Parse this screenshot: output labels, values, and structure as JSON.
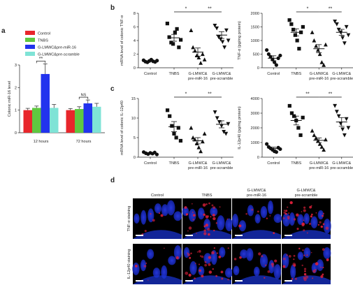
{
  "panels": {
    "a": "a",
    "b": "b",
    "c": "c",
    "d": "d"
  },
  "colors": {
    "control": "#e8262b",
    "tnbs": "#5fc840",
    "premir16": "#2233ee",
    "prescramble": "#7fe3d6",
    "micro_red": "#e0203a",
    "micro_blue": "#1a35d8"
  },
  "chart_data": [
    {
      "id": "a",
      "type": "bar",
      "categories": [
        "12 hours",
        "72 hours"
      ],
      "legend": [
        "Control",
        "TNBS",
        "G-LMWC&pre-miR-16",
        "G-LMWC&pre-scramble"
      ],
      "legend_position": "top",
      "series": [
        {
          "name": "Control",
          "values": [
            1.0,
            1.0
          ],
          "errors": [
            0.08,
            0.07
          ]
        },
        {
          "name": "TNBS",
          "values": [
            1.1,
            1.05
          ],
          "errors": [
            0.08,
            0.1
          ]
        },
        {
          "name": "G-LMWC&pre-miR-16",
          "values": [
            2.6,
            1.3
          ],
          "errors": [
            0.45,
            0.15
          ]
        },
        {
          "name": "G-LMWC&pre-scramble",
          "values": [
            1.1,
            1.15
          ],
          "errors": [
            0.15,
            0.15
          ]
        }
      ],
      "ylabel": "Colonic miR-16 level",
      "ylim": [
        0,
        3
      ],
      "yticks": [
        0,
        1,
        2,
        3
      ],
      "annotations": [
        {
          "text": "**",
          "category": 0,
          "from": 1,
          "to": 2
        },
        {
          "text": "NS",
          "category": 1,
          "from": 1,
          "to": 2
        }
      ]
    },
    {
      "id": "b-left",
      "type": "scatter",
      "categories": [
        "Control",
        "TNBS",
        "G-LMWC& pre-miR-16",
        "G-LMWC& pre-scramble"
      ],
      "ylabel": "mRNA level of colonic TNF-α",
      "ylim": [
        0,
        8
      ],
      "yticks": [
        0,
        2,
        4,
        6,
        8
      ],
      "groups": [
        {
          "points": [
            1.1,
            0.9,
            0.8,
            1.0,
            1.2,
            0.95,
            0.85,
            1.05
          ],
          "mean": 1.0,
          "sem": 0.1
        },
        {
          "points": [
            6.5,
            4.5,
            3.7,
            3.5,
            5.2,
            5.7,
            3.0,
            4.1
          ],
          "mean": 4.4,
          "sem": 0.5
        },
        {
          "points": [
            5.5,
            3.0,
            2.5,
            1.8,
            1.5,
            0.7,
            2.0,
            1.2
          ],
          "mean": 2.3,
          "sem": 0.6
        },
        {
          "points": [
            6.2,
            5.8,
            4.5,
            4.2,
            3.8,
            3.0,
            5.5,
            4.0
          ],
          "mean": 4.8,
          "sem": 0.5
        }
      ],
      "marker_shapes": [
        "circle",
        "square",
        "triangle-up",
        "triangle-down"
      ],
      "annotations": [
        {
          "text": "*",
          "from": 1,
          "to": 2
        },
        {
          "text": "**",
          "from": 2,
          "to": 3
        }
      ]
    },
    {
      "id": "b-right",
      "type": "scatter",
      "categories": [
        "Control",
        "TNBS",
        "G-LMWC& pre-miR-16",
        "G-LMWC& pre-scramble"
      ],
      "ylabel": "TNF-α (pg/mg protein)",
      "ylim": [
        0,
        2000
      ],
      "yticks": [
        0,
        500,
        1000,
        1500,
        2000
      ],
      "groups": [
        {
          "points": [
            650,
            500,
            400,
            300,
            200,
            100,
            350,
            450
          ],
          "mean": 350,
          "sem": 90
        },
        {
          "points": [
            1750,
            1600,
            1400,
            1200,
            1000,
            700,
            1300,
            1500
          ],
          "mean": 1300,
          "sem": 130
        },
        {
          "points": [
            1300,
            1000,
            800,
            650,
            500,
            200,
            100,
            850
          ],
          "mean": 700,
          "sem": 150
        },
        {
          "points": [
            1700,
            1600,
            1400,
            1300,
            1100,
            900,
            1500,
            1200
          ],
          "mean": 1300,
          "sem": 110
        }
      ],
      "marker_shapes": [
        "circle",
        "square",
        "triangle-up",
        "triangle-down"
      ],
      "annotations": [
        {
          "text": "*",
          "from": 1,
          "to": 2
        },
        {
          "text": "**",
          "from": 2,
          "to": 3
        }
      ]
    },
    {
      "id": "c-left",
      "type": "scatter",
      "categories": [
        "Control",
        "TNBS",
        "G-LMWC& pre-miR-16",
        "G-LMWC& pre-scramble"
      ],
      "ylabel": "mRNA level of colonic IL-12p40",
      "ylim": [
        0,
        15
      ],
      "yticks": [
        0,
        5,
        10,
        15
      ],
      "groups": [
        {
          "points": [
            1.3,
            1.0,
            0.8,
            1.1,
            0.9,
            1.2,
            0.7
          ],
          "mean": 1.0,
          "sem": 0.1
        },
        {
          "points": [
            12.0,
            10.5,
            8.0,
            6.0,
            5.0,
            7.5,
            4.2
          ],
          "mean": 7.8,
          "sem": 1.3
        },
        {
          "points": [
            7.5,
            5.0,
            4.5,
            3.5,
            2.5,
            1.5,
            4.0,
            6.0
          ],
          "mean": 4.2,
          "sem": 0.8
        },
        {
          "points": [
            11.5,
            10.0,
            9.0,
            8.0,
            6.5,
            6.0,
            8.5
          ],
          "mean": 8.4,
          "sem": 0.9
        }
      ],
      "marker_shapes": [
        "circle",
        "square",
        "triangle-up",
        "triangle-down"
      ],
      "annotations": [
        {
          "text": "*",
          "from": 1,
          "to": 2
        },
        {
          "text": "**",
          "from": 2,
          "to": 3
        }
      ]
    },
    {
      "id": "c-right",
      "type": "scatter",
      "categories": [
        "Control",
        "TNBS",
        "G-LMWC& pre-miR-16",
        "G-LMWC& pre-scramble"
      ],
      "ylabel": "IL-12p40 (pg/mg protein)",
      "ylim": [
        0,
        4000
      ],
      "yticks": [
        0,
        1000,
        2000,
        3000,
        4000
      ],
      "groups": [
        {
          "points": [
            900,
            700,
            600,
            500,
            400,
            350,
            650,
            550
          ],
          "mean": 600,
          "sem": 80
        },
        {
          "points": [
            3500,
            3000,
            2800,
            2500,
            2000,
            1500,
            2700
          ],
          "mean": 2500,
          "sem": 300
        },
        {
          "points": [
            1800,
            1500,
            1300,
            1100,
            900,
            700,
            500,
            1200
          ],
          "mean": 1150,
          "sem": 160
        },
        {
          "points": [
            3500,
            3100,
            2800,
            2300,
            1900,
            1500,
            2600,
            2000
          ],
          "mean": 2400,
          "sem": 300
        }
      ],
      "marker_shapes": [
        "circle",
        "square",
        "triangle-up",
        "triangle-down"
      ],
      "annotations": [
        {
          "text": "**",
          "from": 1,
          "to": 2
        },
        {
          "text": "**",
          "from": 2,
          "to": 3
        }
      ]
    }
  ],
  "micrographs": {
    "columns": [
      "Control",
      "TNBS",
      "G-LMWC& pre-miR-16",
      "G-LMWC& pre-scramble"
    ],
    "rows": [
      "TNF-α staining",
      "IL-12p40 staining"
    ],
    "red_intensity": [
      [
        0.15,
        0.85,
        0.2,
        0.9
      ],
      [
        0.15,
        0.8,
        0.25,
        0.85
      ]
    ]
  }
}
